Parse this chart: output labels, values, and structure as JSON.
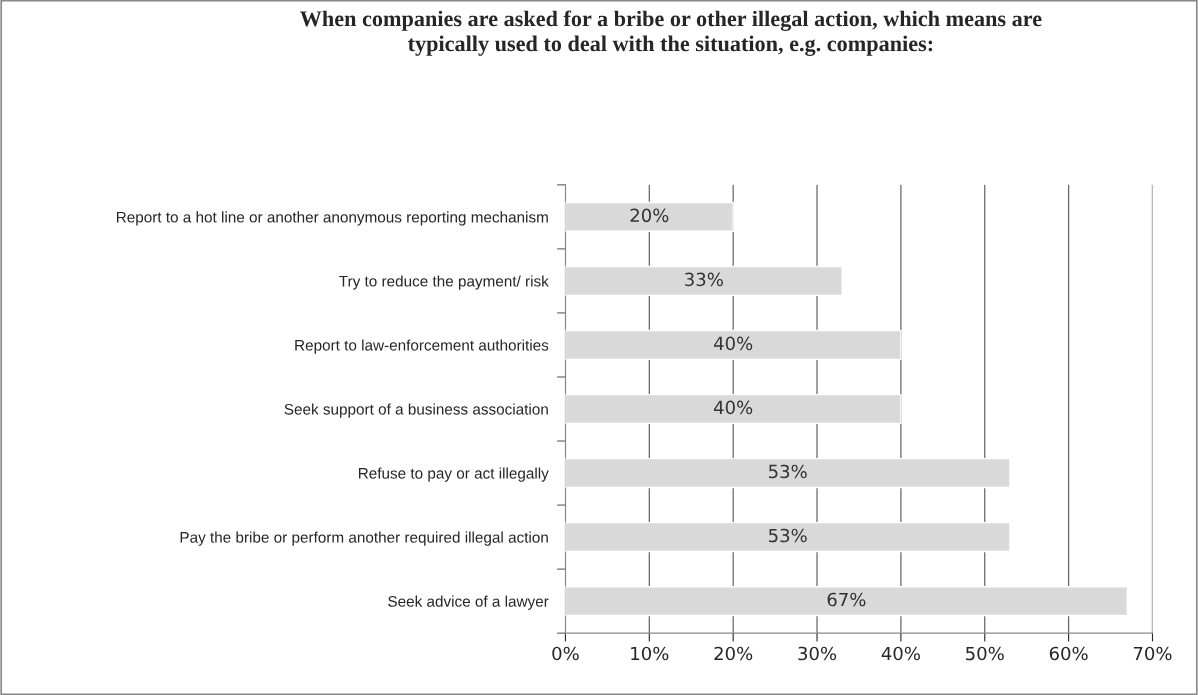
{
  "chart_data": {
    "type": "bar",
    "orientation": "horizontal",
    "title": "When companies are asked for a bribe or other illegal action, which means are\ntypically used to deal with the situation, e.g. companies:",
    "categories": [
      "Report to a hot line or another anonymous reporting mechanism",
      "Try to reduce the payment/ risk",
      "Report to law-enforcement authorities",
      "Seek support of a business association",
      "Refuse to pay or act illegally",
      "Pay the bribe or perform another required illegal action",
      "Seek advice of a lawyer"
    ],
    "values": [
      20,
      33,
      40,
      40,
      53,
      53,
      67
    ],
    "value_labels": [
      "20%",
      "33%",
      "40%",
      "40%",
      "53%",
      "53%",
      "67%"
    ],
    "color": "#d9d9d9",
    "xlim": [
      0,
      70
    ],
    "xticks": [
      {
        "value": 0,
        "label": "0%"
      },
      {
        "value": 10,
        "label": "10%"
      },
      {
        "value": 20,
        "label": "20%"
      },
      {
        "value": 30,
        "label": "30%"
      },
      {
        "value": 40,
        "label": "40%"
      },
      {
        "value": 50,
        "label": "50%"
      },
      {
        "value": 60,
        "label": "60%"
      },
      {
        "value": 70,
        "label": "70%"
      }
    ],
    "grid": "x"
  }
}
